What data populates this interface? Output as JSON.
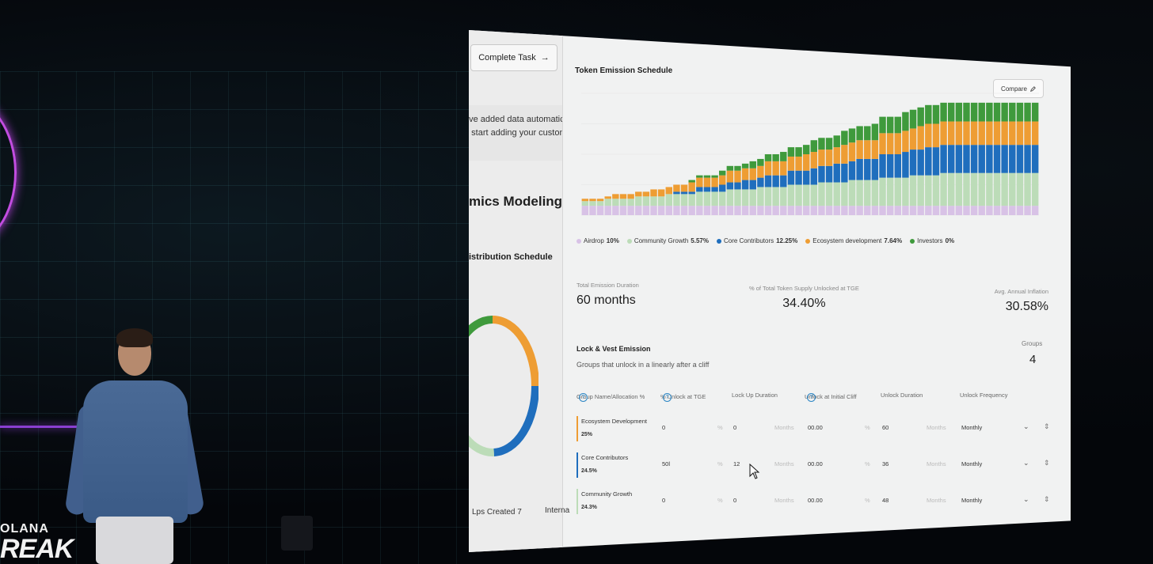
{
  "event": {
    "logo_top": "OLANA",
    "logo_main": "REAK"
  },
  "sidebar": {
    "complete_button": "Complete Task",
    "complete_arrow": "→",
    "notice_line1": "ave added data automaticall",
    "notice_line2": "u start adding your custom c",
    "section_title": "mics Modeling",
    "distribution_title": "istribution Schedule",
    "footer_left": "Lps Created 7",
    "footer_right": "Interna"
  },
  "header": {
    "title": "Token Emission Schedule",
    "compare_label": "Compare",
    "compare_icon": "pencil-icon"
  },
  "chart_data": {
    "type": "bar",
    "stacked": true,
    "title": "",
    "xlabel": "",
    "ylabel": "",
    "periods": 60,
    "series": [
      {
        "name": "Airdrop",
        "color": "#d8c2e6",
        "values": [
          4,
          4,
          4,
          4,
          4,
          4,
          4,
          4,
          4,
          4,
          4,
          4,
          4,
          4,
          4,
          4,
          4,
          4,
          4,
          4,
          4,
          4,
          4,
          4,
          4,
          4,
          4,
          4,
          4,
          4,
          4,
          4,
          4,
          4,
          4,
          4,
          4,
          4,
          4,
          4,
          4,
          4,
          4,
          4,
          4,
          4,
          4,
          4,
          4,
          4,
          4,
          4,
          4,
          4,
          4,
          4,
          4,
          4,
          4,
          4
        ]
      },
      {
        "name": "Community Growth",
        "color": "#bcdcb8",
        "values": [
          2,
          2,
          2,
          3,
          3,
          3,
          3,
          4,
          4,
          4,
          4,
          5,
          5,
          5,
          5,
          6,
          6,
          6,
          6,
          7,
          7,
          7,
          7,
          8,
          8,
          8,
          8,
          9,
          9,
          9,
          9,
          10,
          10,
          10,
          10,
          11,
          11,
          11,
          11,
          12,
          12,
          12,
          12,
          13,
          13,
          13,
          13,
          14,
          14,
          14,
          14,
          14,
          14,
          14,
          14,
          14,
          14,
          14,
          14,
          14
        ]
      },
      {
        "name": "Core Contributors",
        "color": "#1f6ebd",
        "values": [
          0,
          0,
          0,
          0,
          0,
          0,
          0,
          0,
          0,
          0,
          0,
          0,
          1,
          1,
          1,
          2,
          2,
          2,
          3,
          3,
          3,
          4,
          4,
          4,
          5,
          5,
          5,
          6,
          6,
          6,
          7,
          7,
          7,
          8,
          8,
          8,
          9,
          9,
          9,
          10,
          10,
          10,
          11,
          11,
          11,
          12,
          12,
          12,
          12,
          12,
          12,
          12,
          12,
          12,
          12,
          12,
          12,
          12,
          12,
          12
        ]
      },
      {
        "name": "Ecosystem development",
        "color": "#ee9d33",
        "values": [
          1,
          1,
          1,
          1,
          2,
          2,
          2,
          2,
          2,
          3,
          3,
          3,
          3,
          3,
          4,
          4,
          4,
          4,
          4,
          5,
          5,
          5,
          5,
          5,
          6,
          6,
          6,
          6,
          6,
          7,
          7,
          7,
          7,
          7,
          8,
          8,
          8,
          8,
          8,
          9,
          9,
          9,
          9,
          9,
          10,
          10,
          10,
          10,
          10,
          10,
          10,
          10,
          10,
          10,
          10,
          10,
          10,
          10,
          10,
          10
        ]
      },
      {
        "name": "Investors",
        "color": "#3f9a3c",
        "values": [
          0,
          0,
          0,
          0,
          0,
          0,
          0,
          0,
          0,
          0,
          0,
          0,
          0,
          0,
          1,
          1,
          1,
          1,
          2,
          2,
          2,
          2,
          3,
          3,
          3,
          3,
          4,
          4,
          4,
          4,
          5,
          5,
          5,
          5,
          6,
          6,
          6,
          6,
          7,
          7,
          7,
          7,
          8,
          8,
          8,
          8,
          8,
          8,
          8,
          8,
          8,
          8,
          8,
          8,
          8,
          8,
          8,
          8,
          8,
          8
        ]
      }
    ],
    "ylim": [
      0,
      52
    ],
    "legend": [
      {
        "name": "Airdrop",
        "pct": "10%",
        "color": "#d8c2e6"
      },
      {
        "name": "Community Growth",
        "pct": "5.57%",
        "color": "#bcdcb8"
      },
      {
        "name": "Core Contributors",
        "pct": "12.25%",
        "color": "#1f6ebd"
      },
      {
        "name": "Ecosystem development",
        "pct": "7.64%",
        "color": "#ee9d33"
      },
      {
        "name": "Investors",
        "pct": "0%",
        "color": "#3f9a3c"
      }
    ]
  },
  "stats": {
    "duration_label": "Total Emission Duration",
    "duration_value": "60 months",
    "tge_label": "% of Total Token Supply Unlocked at TGE",
    "tge_value": "34.40%",
    "inflation_label": "Avg. Annual Inflation",
    "inflation_value": "30.58%"
  },
  "lock_vest": {
    "title": "Lock & Vest Emission",
    "subtitle": "Groups that unlock in a linearly after a cliff",
    "groups_label": "Groups",
    "groups_value": "4",
    "columns": [
      "Group Name/Allocation %",
      "% Unlock at TGE",
      "Lock Up Duration",
      "Unlock at Initial Cliff",
      "Unlock Duration",
      "Unlock Frequency"
    ],
    "rows": [
      {
        "name": "Ecosystem Development",
        "pct": "25%",
        "color": "#ee9d33",
        "tge": "0",
        "tge_unit": "%",
        "lockup": "0",
        "lockup_unit": "Months",
        "cliff": "00.00",
        "cliff_unit": "%",
        "duration": "60",
        "duration_unit": "Months",
        "frequency": "Monthly"
      },
      {
        "name": "Core Contributors",
        "pct": "24.5%",
        "color": "#1f6ebd",
        "tge": "50l",
        "tge_unit": "%",
        "lockup": "12",
        "lockup_unit": "Months",
        "cliff": "00.00",
        "cliff_unit": "%",
        "duration": "36",
        "duration_unit": "Months",
        "frequency": "Monthly"
      },
      {
        "name": "Community Growth",
        "pct": "24.3%",
        "color": "#bcdcb8",
        "tge": "0",
        "tge_unit": "%",
        "lockup": "0",
        "lockup_unit": "Months",
        "cliff": "00.00",
        "cliff_unit": "%",
        "duration": "48",
        "duration_unit": "Months",
        "frequency": "Monthly"
      }
    ]
  },
  "donut": [
    {
      "color": "#ee9d33",
      "value": 25
    },
    {
      "color": "#1f6ebd",
      "value": 24.5
    },
    {
      "color": "#bcdcb8",
      "value": 24.3
    },
    {
      "color": "#3f9a3c",
      "value": 26.2
    }
  ]
}
